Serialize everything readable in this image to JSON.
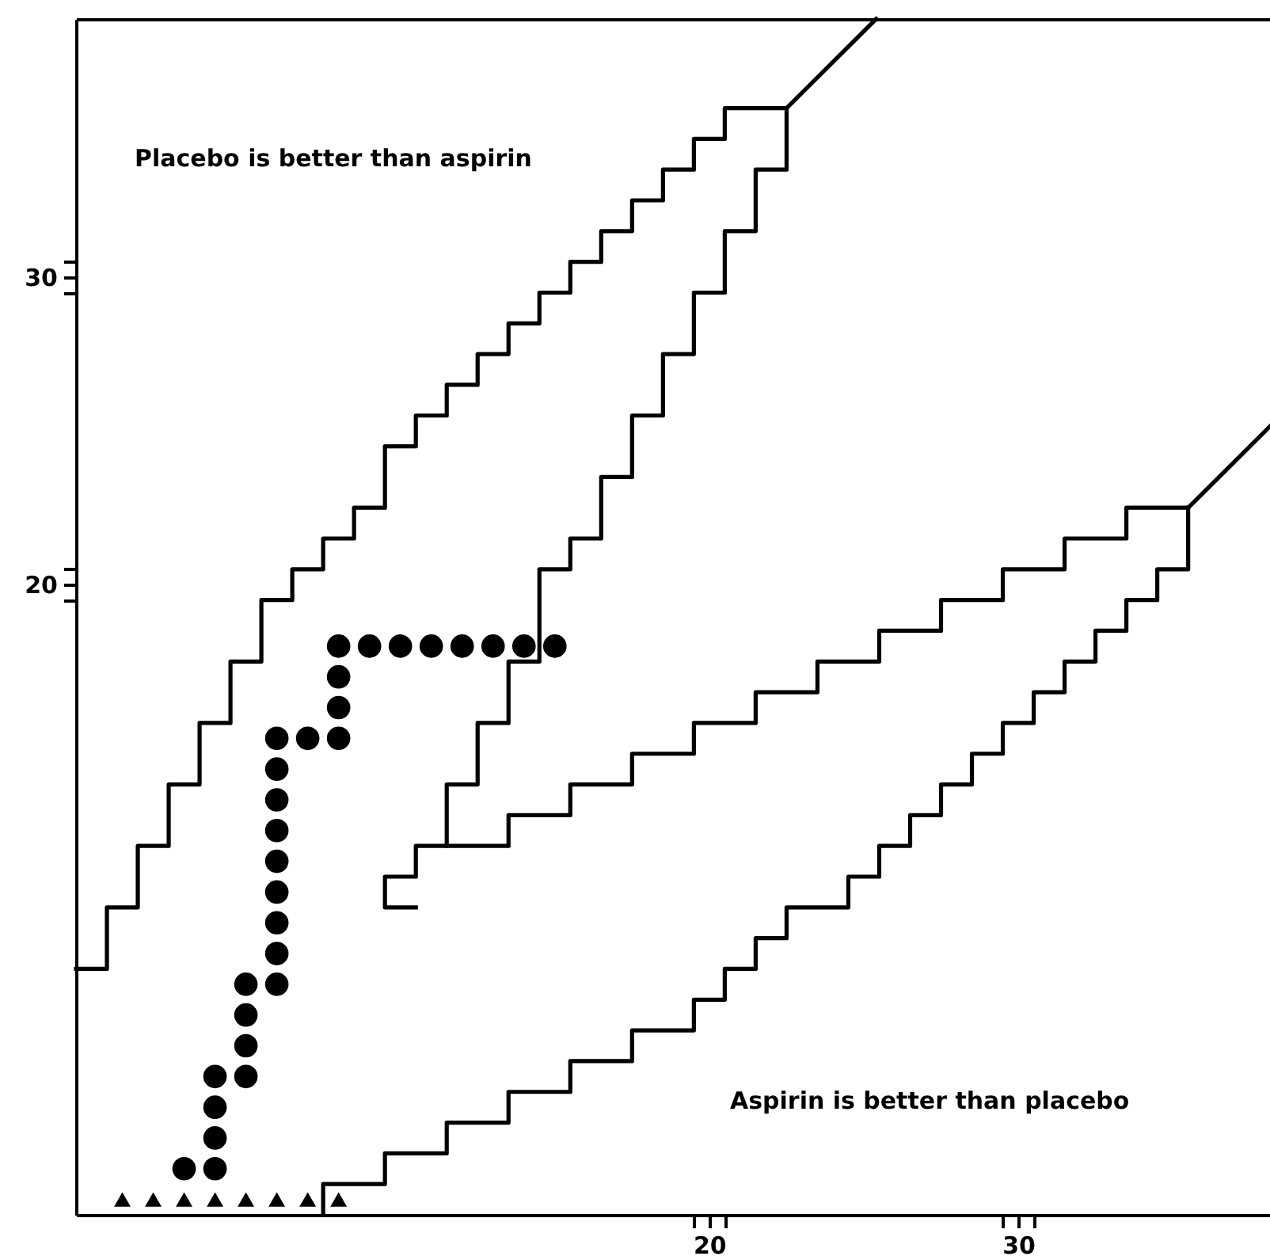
{
  "chart_data": {
    "type": "scatter",
    "xlim": [
      -0.5,
      38.2
    ],
    "ylim": [
      -0.5,
      38.4
    ],
    "xticks": [
      {
        "value": 19.5,
        "label": null
      },
      {
        "value": 20,
        "label": "20"
      },
      {
        "value": 20.5,
        "label": null
      },
      {
        "value": 29.5,
        "label": null
      },
      {
        "value": 30,
        "label": "30"
      },
      {
        "value": 30.5,
        "label": null
      }
    ],
    "yticks": [
      {
        "value": 19.5,
        "label": null
      },
      {
        "value": 20,
        "label": "20"
      },
      {
        "value": 20.5,
        "label": null
      },
      {
        "value": 29.5,
        "label": null
      },
      {
        "value": 30,
        "label": "30"
      },
      {
        "value": 30.5,
        "label": null
      }
    ],
    "annotations": [
      "Placebo is better than aspirin",
      "Aspirin is better than placebo"
    ],
    "series": [
      {
        "type": "line",
        "color": "#000000",
        "marker": "none",
        "x": [
          -0.5,
          0.5,
          0.5,
          1.5,
          1.5,
          2.5,
          2.5,
          3.5,
          3.5,
          4.5,
          4.5,
          5.5,
          5.5,
          6.5,
          6.5,
          7.5,
          7.5,
          8.5,
          8.5,
          9.5,
          9.5,
          10.5,
          10.5,
          11.5,
          11.5,
          12.5,
          12.5,
          13.5,
          13.5,
          14.5,
          14.5,
          15.5,
          15.5,
          16.5,
          16.5,
          17.5,
          17.5,
          18.5,
          18.5,
          19.5,
          19.5,
          20.5,
          20.5,
          22.5,
          25.4
        ],
        "values": [
          7.5,
          7.5,
          9.5,
          9.5,
          11.5,
          11.5,
          13.5,
          13.5,
          15.5,
          15.5,
          17.5,
          17.5,
          19.5,
          19.5,
          20.5,
          20.5,
          21.5,
          21.5,
          22.5,
          22.5,
          24.5,
          24.5,
          25.5,
          25.5,
          26.5,
          26.5,
          27.5,
          27.5,
          28.5,
          28.5,
          29.5,
          29.5,
          30.5,
          30.5,
          31.5,
          31.5,
          32.5,
          32.5,
          33.5,
          33.5,
          34.5,
          34.5,
          35.5,
          35.5,
          38.4
        ]
      },
      {
        "type": "line",
        "color": "#000000",
        "marker": "none",
        "x": [
          22.5,
          22.5,
          21.5,
          21.5,
          20.5,
          20.5,
          19.5,
          19.5,
          18.5,
          18.5,
          17.5,
          17.5,
          16.5,
          16.5,
          15.5,
          15.5,
          14.5,
          14.5,
          13.5,
          13.5,
          12.5,
          12.5,
          11.5,
          11.5,
          10.5,
          10.5,
          9.5,
          9.5,
          10.5
        ],
        "values": [
          35.5,
          33.5,
          33.5,
          31.5,
          31.5,
          29.5,
          29.5,
          27.5,
          27.5,
          25.5,
          25.5,
          23.5,
          23.5,
          21.5,
          21.5,
          20.5,
          20.5,
          17.5,
          17.5,
          15.5,
          15.5,
          13.5,
          13.5,
          11.5,
          11.5,
          10.5,
          10.5,
          9.5,
          9.5
        ]
      },
      {
        "type": "line",
        "color": "#000000",
        "marker": "none",
        "x": [
          11.5,
          13.5,
          13.5,
          15.5,
          15.5,
          17.5,
          17.5,
          19.5,
          19.5,
          21.5,
          21.5,
          23.5,
          23.5,
          25.5,
          25.5,
          27.5,
          27.5,
          29.5,
          29.5,
          31.5,
          31.5,
          33.5,
          33.5,
          35.5,
          38.2
        ],
        "values": [
          11.5,
          11.5,
          12.5,
          12.5,
          13.5,
          13.5,
          14.5,
          14.5,
          15.5,
          15.5,
          16.5,
          16.5,
          17.5,
          17.5,
          18.5,
          18.5,
          19.5,
          19.5,
          20.5,
          20.5,
          21.5,
          21.5,
          22.5,
          22.5,
          25.2
        ]
      },
      {
        "type": "line",
        "color": "#000000",
        "marker": "none",
        "x": [
          35.5,
          35.5,
          34.5,
          34.5,
          33.5,
          33.5,
          32.5,
          32.5,
          31.5,
          31.5,
          30.5,
          30.5,
          29.5,
          29.5,
          28.5,
          28.5,
          27.5,
          27.5,
          26.5,
          26.5,
          25.5,
          25.5,
          24.5,
          24.5,
          22.5,
          22.5,
          21.5,
          21.5,
          20.5,
          20.5,
          19.5,
          19.5,
          17.5,
          17.5,
          15.5,
          15.5,
          13.5,
          13.5,
          11.5,
          11.5,
          9.5,
          9.5,
          7.5,
          7.5
        ],
        "values": [
          22.5,
          20.5,
          20.5,
          19.5,
          19.5,
          18.5,
          18.5,
          17.5,
          17.5,
          16.5,
          16.5,
          15.5,
          15.5,
          14.5,
          14.5,
          13.5,
          13.5,
          12.5,
          12.5,
          11.5,
          11.5,
          10.5,
          10.5,
          9.5,
          9.5,
          8.5,
          8.5,
          7.5,
          7.5,
          6.5,
          6.5,
          5.5,
          5.5,
          4.5,
          4.5,
          3.5,
          3.5,
          2.5,
          2.5,
          1.5,
          1.5,
          0.5,
          0.5,
          -0.5
        ]
      },
      {
        "type": "scatter",
        "color": "#000000",
        "marker": "circle",
        "x": [
          3,
          4,
          4,
          4,
          4,
          5,
          5,
          5,
          5,
          6,
          6,
          6,
          6,
          6,
          6,
          6,
          6,
          6,
          7,
          8,
          8,
          8,
          8,
          9,
          10,
          11,
          12,
          13,
          14,
          15
        ],
        "values": [
          1,
          1,
          2,
          3,
          4,
          4,
          5,
          6,
          7,
          7,
          8,
          9,
          10,
          11,
          12,
          13,
          14,
          15,
          15,
          15,
          16,
          17,
          18,
          18,
          18,
          18,
          18,
          18,
          18,
          18
        ]
      },
      {
        "type": "scatter",
        "color": "#000000",
        "marker": "triangle",
        "x": [
          1,
          2,
          3,
          4,
          5,
          6,
          7,
          8
        ],
        "values": [
          0,
          0,
          0,
          0,
          0,
          0,
          0,
          0
        ]
      }
    ]
  }
}
